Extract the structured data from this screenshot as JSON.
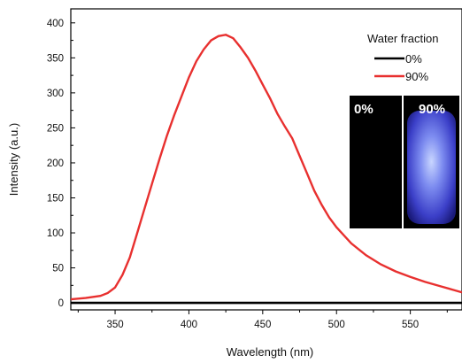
{
  "chart_data": {
    "type": "line",
    "xlabel": "Wavelength (nm)",
    "ylabel": "Intensity (a.u.)",
    "xlim": [
      320,
      585
    ],
    "ylim": [
      -10,
      420
    ],
    "xticks": [
      350,
      400,
      450,
      500,
      550
    ],
    "yticks": [
      0,
      50,
      100,
      150,
      200,
      250,
      300,
      350,
      400
    ],
    "grid": false,
    "legend": {
      "title": "Water fraction",
      "placement": "top-right"
    },
    "series": [
      {
        "name": "0%",
        "color": "#000000",
        "x": [
          320,
          585
        ],
        "y": [
          0,
          0
        ]
      },
      {
        "name": "90%",
        "color": "#e8302f",
        "x": [
          320,
          330,
          340,
          345,
          350,
          355,
          360,
          365,
          370,
          375,
          380,
          385,
          390,
          395,
          400,
          405,
          410,
          415,
          420,
          425,
          430,
          435,
          440,
          445,
          450,
          455,
          460,
          465,
          470,
          475,
          480,
          485,
          490,
          495,
          500,
          510,
          520,
          530,
          540,
          550,
          560,
          570,
          580,
          585
        ],
        "y": [
          5,
          7,
          10,
          14,
          22,
          40,
          65,
          100,
          135,
          170,
          205,
          238,
          268,
          295,
          322,
          345,
          362,
          375,
          381,
          383,
          378,
          365,
          350,
          332,
          312,
          292,
          270,
          252,
          235,
          210,
          185,
          160,
          140,
          122,
          108,
          85,
          68,
          55,
          45,
          37,
          30,
          24,
          18,
          15
        ]
      }
    ],
    "inset": {
      "labels": [
        "0%",
        "90%"
      ]
    }
  }
}
